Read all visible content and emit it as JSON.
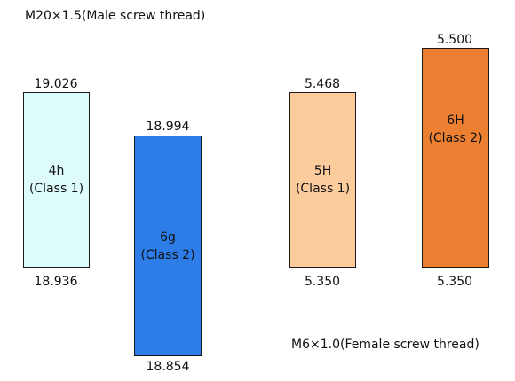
{
  "male_title": "M20×1.5(Male screw thread)",
  "female_title": "M6×1.0(Female screw thread)",
  "bars": [
    {
      "grade": "4h",
      "class": "(Class 1)",
      "upper": "19.026",
      "lower": "18.936",
      "color": "#ddfbfb"
    },
    {
      "grade": "6g",
      "class": "(Class 2)",
      "upper": "18.994",
      "lower": "18.854",
      "color": "#2d7de8"
    },
    {
      "grade": "5H",
      "class": "(Class 1)",
      "upper": "5.468",
      "lower": "5.350",
      "color": "#fccc9c"
    },
    {
      "grade": "6H",
      "class": "(Class 2)",
      "upper": "5.500",
      "lower": "5.350",
      "color": "#ed7f32"
    }
  ]
}
